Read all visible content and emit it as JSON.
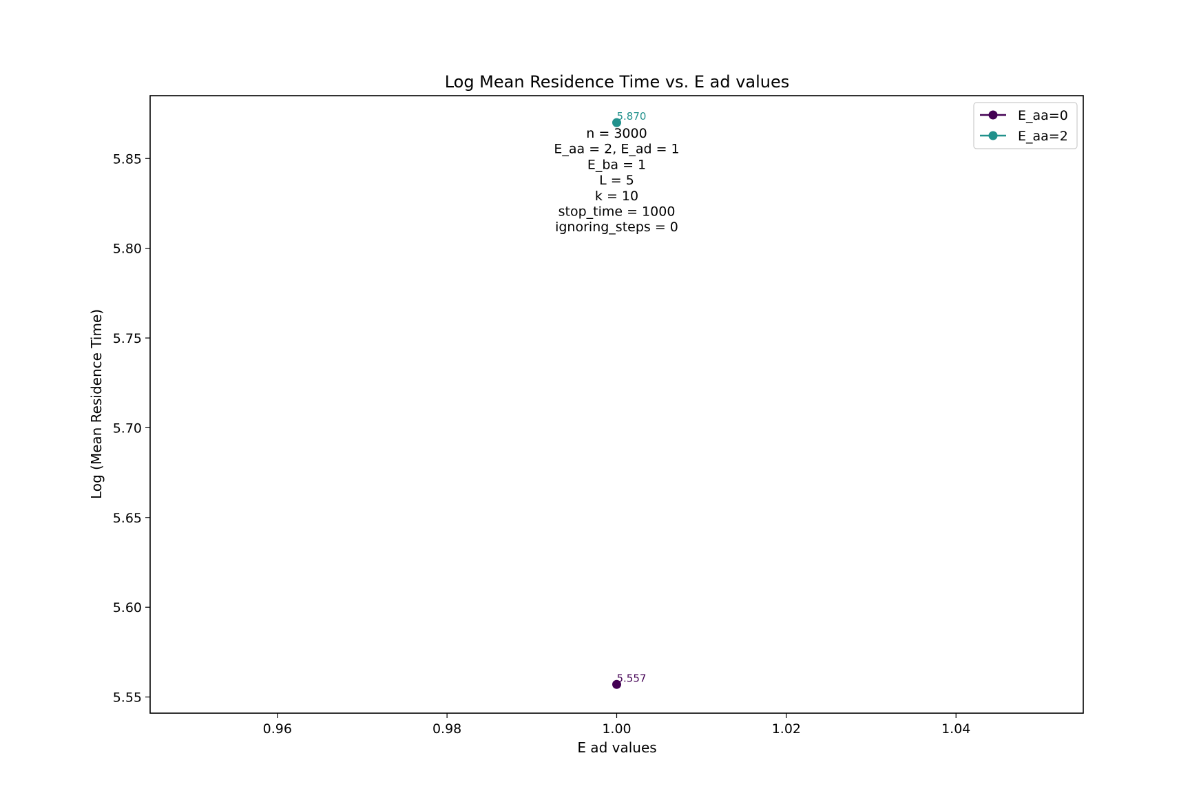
{
  "chart_data": {
    "type": "line",
    "title": "Log Mean Residence Time vs. E ad values",
    "xlabel": "E ad values",
    "ylabel": "Log (Mean Residence Time)",
    "xlim": [
      0.945,
      1.055
    ],
    "ylim": [
      5.541,
      5.885
    ],
    "xticks": [
      0.96,
      0.98,
      1.0,
      1.02,
      1.04
    ],
    "xtick_labels": [
      "0.96",
      "0.98",
      "1.00",
      "1.02",
      "1.04"
    ],
    "yticks": [
      5.55,
      5.6,
      5.65,
      5.7,
      5.75,
      5.8,
      5.85
    ],
    "ytick_labels": [
      "5.55",
      "5.60",
      "5.65",
      "5.70",
      "5.75",
      "5.80",
      "5.85"
    ],
    "grid": false,
    "legend_position": "top-right",
    "series": [
      {
        "name": "E_aa=0",
        "color": "#440154",
        "marker": "circle",
        "x": [
          1.0
        ],
        "y": [
          5.557
        ],
        "labels": [
          "5.557"
        ]
      },
      {
        "name": "E_aa=2",
        "color": "#21918c",
        "marker": "circle",
        "x": [
          1.0
        ],
        "y": [
          5.87
        ],
        "labels": [
          "5.870"
        ]
      }
    ],
    "annotation_lines": [
      "n = 3000",
      "E_aa = 2, E_ad = 1",
      "E_ba = 1",
      "L = 5",
      "k = 10",
      "stop_time = 1000",
      "ignoring_steps = 0"
    ]
  }
}
